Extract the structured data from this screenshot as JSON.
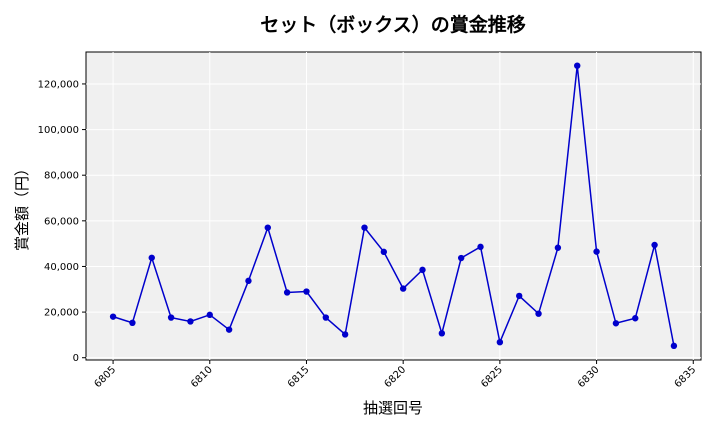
{
  "chart_data": {
    "type": "line",
    "title": "セット（ボックス）の賞金推移",
    "xlabel": "抽選回号",
    "ylabel": "賞金額（円）",
    "x": [
      6805,
      6806,
      6807,
      6808,
      6809,
      6810,
      6811,
      6812,
      6813,
      6814,
      6815,
      6816,
      6817,
      6818,
      6819,
      6820,
      6821,
      6822,
      6823,
      6824,
      6825,
      6826,
      6827,
      6828,
      6829,
      6830,
      6831,
      6832,
      6833,
      6834
    ],
    "series": [
      {
        "name": "",
        "values": [
          18000,
          15300,
          43800,
          17600,
          15900,
          18800,
          12300,
          33700,
          57000,
          28600,
          29000,
          17600,
          10200,
          57000,
          46400,
          30300,
          38500,
          10700,
          43700,
          48600,
          6800,
          27100,
          19300,
          48200,
          128000,
          46500,
          15100,
          17300,
          49400,
          5200
        ],
        "color": "#0000cc"
      }
    ],
    "xlim": [
      6803.6,
      6835.4
    ],
    "ylim": [
      -1000,
      134000
    ],
    "xticks": [
      6805,
      6810,
      6815,
      6820,
      6825,
      6830,
      6835
    ],
    "yticks": [
      0,
      20000,
      40000,
      60000,
      80000,
      100000,
      120000
    ],
    "ytick_labels": [
      "0",
      "20,000",
      "40,000",
      "60,000",
      "80,000",
      "100,000",
      "120,000"
    ],
    "grid": true,
    "plot_background": "#f0f0f0"
  }
}
